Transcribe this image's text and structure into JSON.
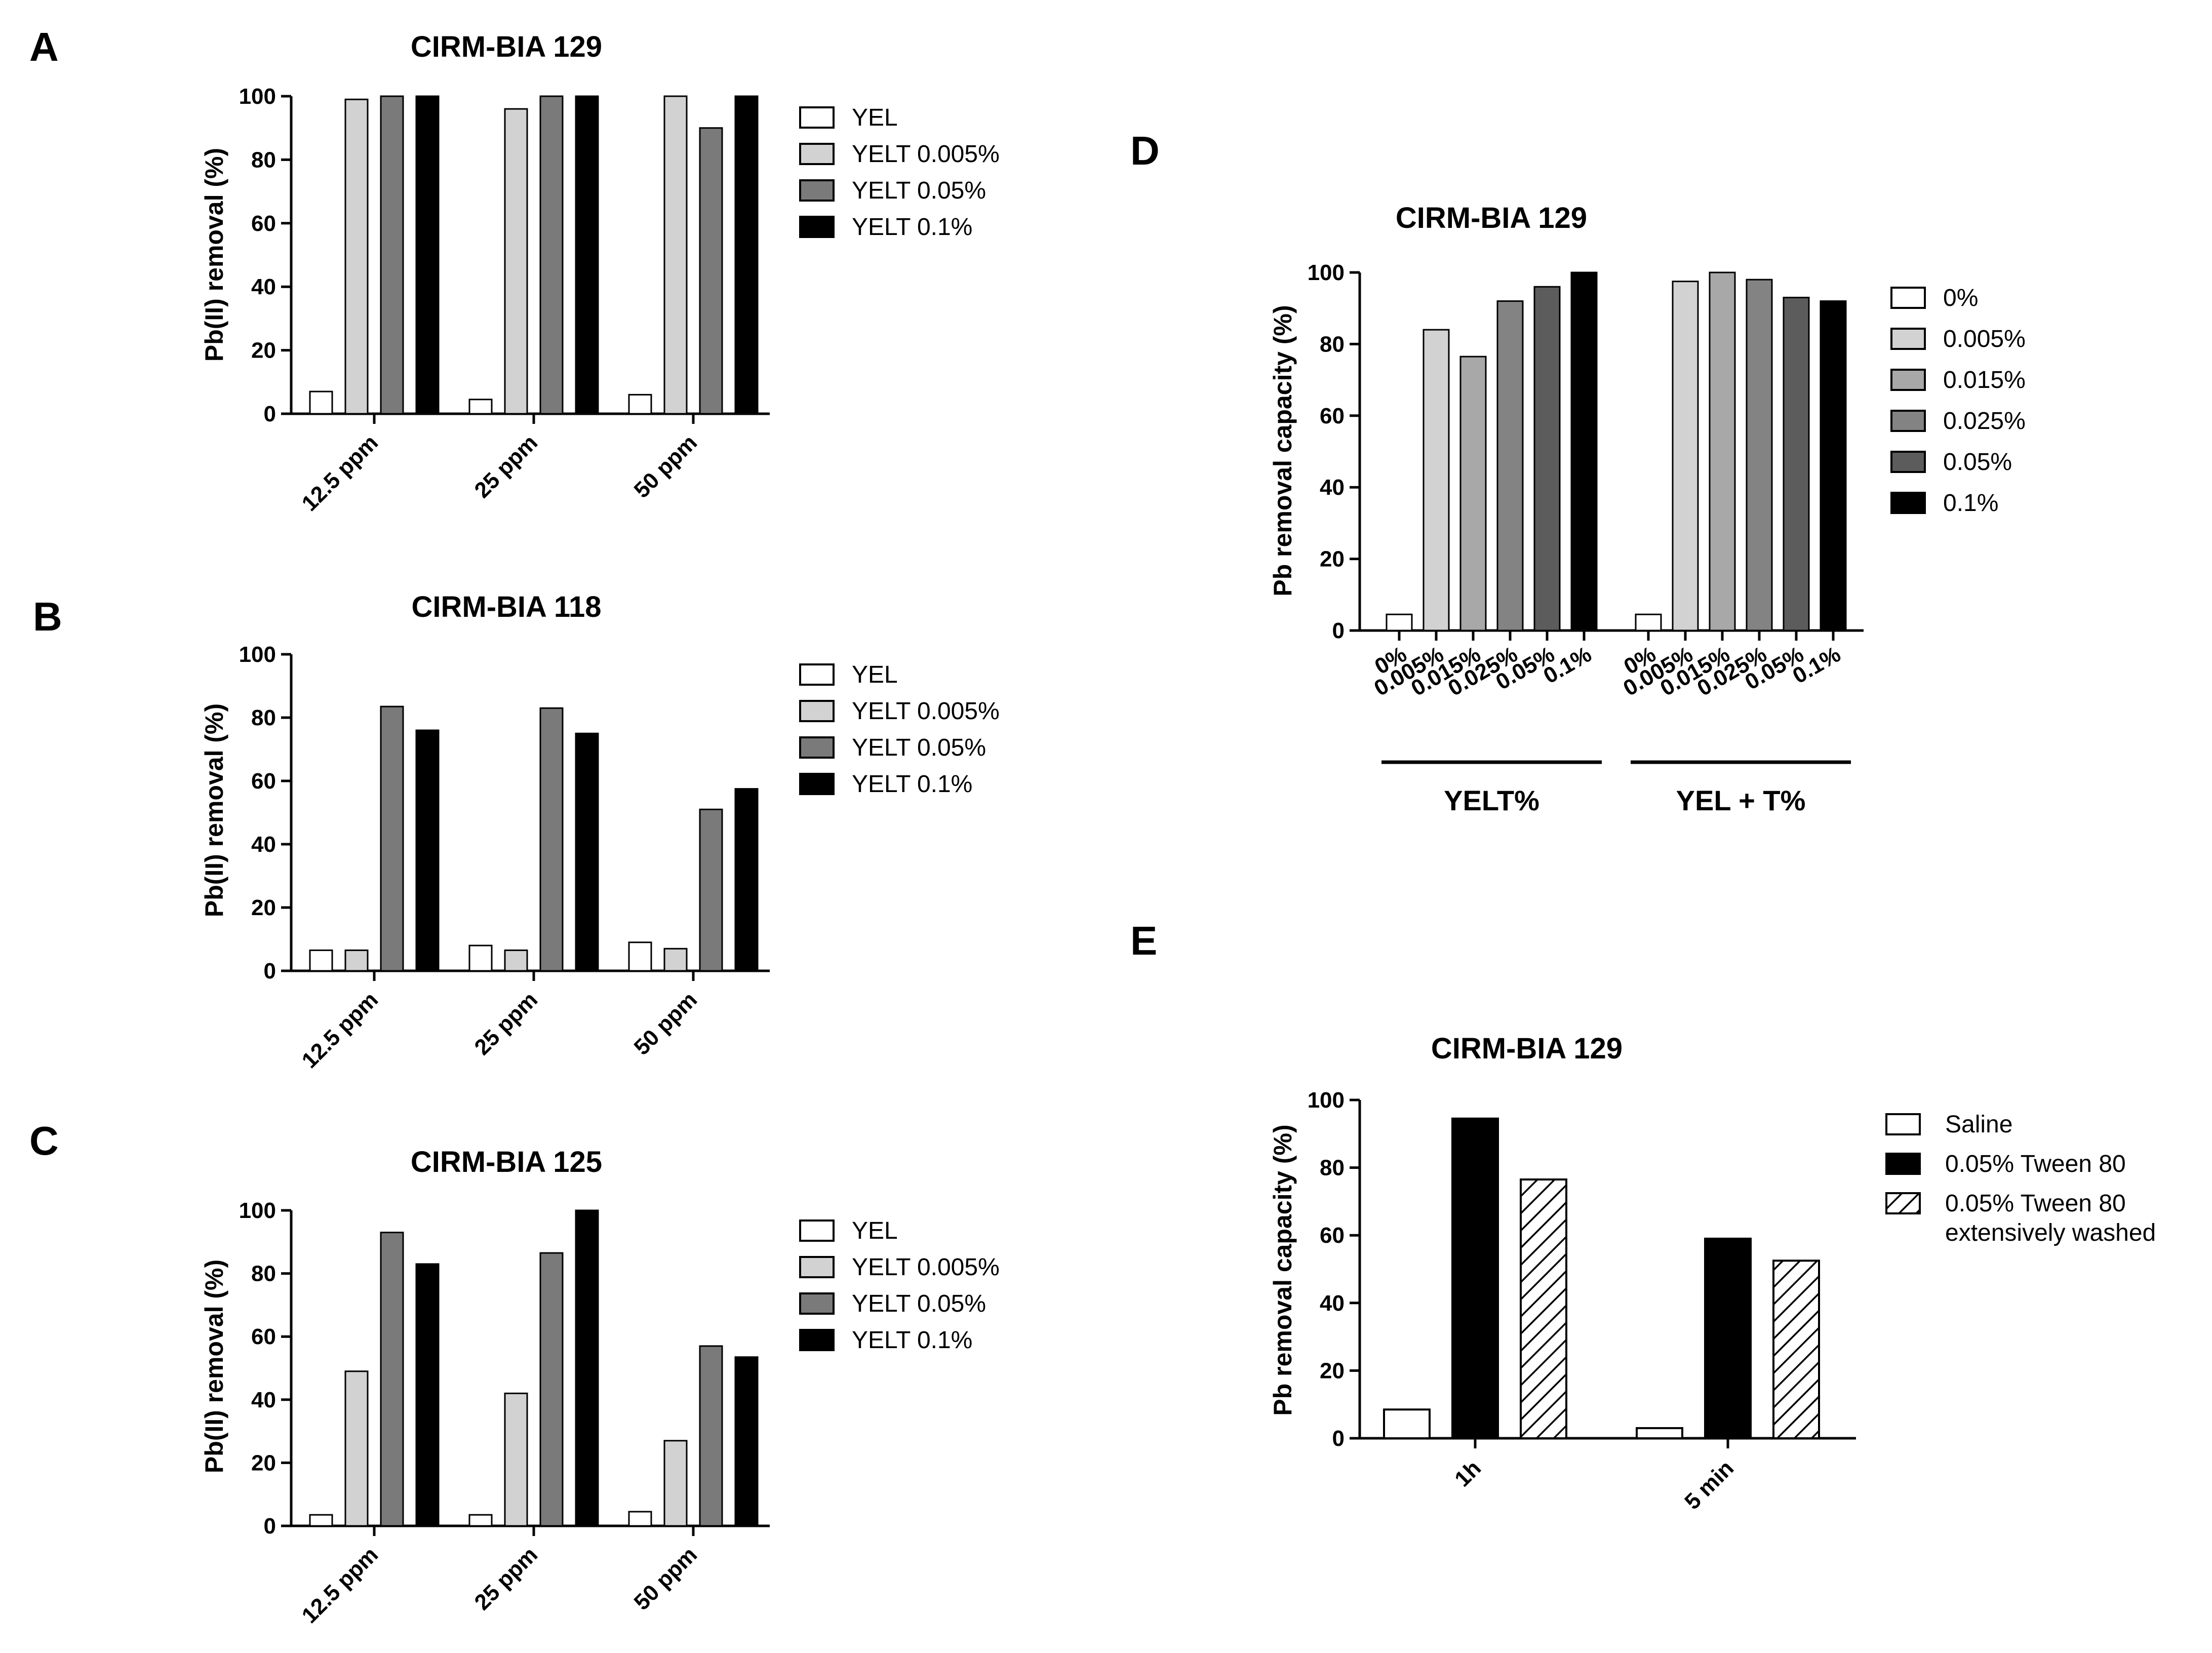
{
  "colors": {
    "YEL": "#ffffff",
    "YELT 0.005%": "#d2d2d2",
    "YELT 0.05%": "#7a7a7a",
    "YELT 0.1%": "#000000",
    "0%": "#ffffff",
    "0.005%": "#d2d2d2",
    "0.015%": "#a8a8a8",
    "0.025%": "#838383",
    "0.05%": "#5c5c5c",
    "0.1%": "#000000",
    "Saline": "#ffffff",
    "0.05% Tween 80": "#000000",
    "0.05% Tween 80 extensively washed": "hatch"
  },
  "chart_data": [
    {
      "panel": "A",
      "type": "bar",
      "title": "CIRM-BIA 129",
      "ylabel": "Pb(II) removal  (%)",
      "ylim": [
        0,
        100
      ],
      "yticks": [
        0,
        20,
        40,
        60,
        80,
        100
      ],
      "categories": [
        "12.5 ppm",
        "25 ppm",
        "50 ppm"
      ],
      "series": [
        {
          "name": "YEL",
          "values": [
            7,
            4.5,
            6
          ]
        },
        {
          "name": "YELT 0.005%",
          "values": [
            99,
            96,
            100
          ]
        },
        {
          "name": "YELT 0.05%",
          "values": [
            100,
            100,
            90
          ]
        },
        {
          "name": "YELT 0.1%",
          "values": [
            100,
            100,
            100
          ]
        }
      ],
      "legend": "right"
    },
    {
      "panel": "B",
      "type": "bar",
      "title": "CIRM-BIA 118",
      "ylabel": "Pb(II) removal  (%)",
      "ylim": [
        0,
        100
      ],
      "yticks": [
        0,
        20,
        40,
        60,
        80,
        100
      ],
      "categories": [
        "12.5 ppm",
        "25 ppm",
        "50 ppm"
      ],
      "series": [
        {
          "name": "YEL",
          "values": [
            6.5,
            8,
            9
          ]
        },
        {
          "name": "YELT 0.005%",
          "values": [
            6.5,
            6.5,
            7
          ]
        },
        {
          "name": "YELT 0.05%",
          "values": [
            83.5,
            83,
            51
          ]
        },
        {
          "name": "YELT 0.1%",
          "values": [
            76,
            75,
            57.5
          ]
        }
      ],
      "legend": "right"
    },
    {
      "panel": "C",
      "type": "bar",
      "title": "CIRM-BIA 125",
      "ylabel": "Pb(II) removal  (%)",
      "ylim": [
        0,
        100
      ],
      "yticks": [
        0,
        20,
        40,
        60,
        80,
        100
      ],
      "categories": [
        "12.5 ppm",
        "25 ppm",
        "50 ppm"
      ],
      "series": [
        {
          "name": "YEL",
          "values": [
            3.5,
            3.5,
            4.5
          ]
        },
        {
          "name": "YELT 0.005%",
          "values": [
            49,
            42,
            27
          ]
        },
        {
          "name": "YELT 0.05%",
          "values": [
            93,
            86.5,
            57
          ]
        },
        {
          "name": "YELT 0.1%",
          "values": [
            83,
            100,
            53.5
          ]
        }
      ],
      "legend": "right"
    },
    {
      "panel": "D",
      "type": "bar",
      "title": "CIRM-BIA 129",
      "ylabel": "Pb removal capacity (%)",
      "ylim": [
        0,
        100
      ],
      "yticks": [
        0,
        20,
        40,
        60,
        80,
        100
      ],
      "groups": [
        "YELT%",
        "YEL + T%"
      ],
      "categories": [
        "0%",
        "0.005%",
        "0.015%",
        "0.025%",
        "0.05%",
        "0.1%"
      ],
      "series": [
        {
          "name": "YELT%",
          "values": [
            4.5,
            84,
            76.5,
            92,
            96,
            100
          ]
        },
        {
          "name": "YEL + T%",
          "values": [
            4.5,
            97.5,
            100,
            98,
            93,
            92
          ]
        }
      ],
      "legend_entries": [
        "0%",
        "0.005%",
        "0.015%",
        "0.025%",
        "0.05%",
        "0.1%"
      ],
      "legend": "right"
    },
    {
      "panel": "E",
      "type": "bar",
      "title": "CIRM-BIA 129",
      "ylabel": "Pb removal capacity (%)",
      "ylim": [
        0,
        100
      ],
      "yticks": [
        0,
        20,
        40,
        60,
        80,
        100
      ],
      "categories": [
        "1h",
        "5 min"
      ],
      "series": [
        {
          "name": "Saline",
          "values": [
            8.5,
            3
          ]
        },
        {
          "name": "0.05% Tween 80",
          "values": [
            94.5,
            59
          ]
        },
        {
          "name": "0.05% Tween 80 extensively washed",
          "values": [
            76.5,
            52.5
          ]
        }
      ],
      "legend_labels": [
        "Saline",
        "0.05% Tween 80",
        "0.05% Tween 80",
        "extensively washed"
      ],
      "legend": "right"
    }
  ]
}
